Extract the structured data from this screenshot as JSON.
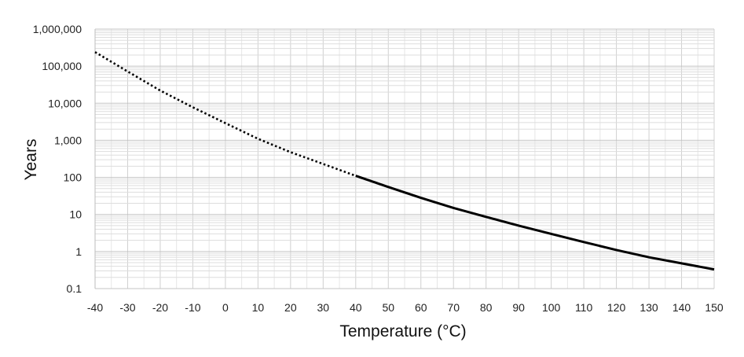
{
  "chart_data": {
    "type": "line",
    "title": "",
    "xlabel": "Temperature (°C)",
    "ylabel": "Years",
    "y_scale": "log",
    "xlim": [
      -40,
      150
    ],
    "ylim": [
      0.1,
      1000000
    ],
    "grid": true,
    "x_ticks": [
      -40,
      -30,
      -20,
      -10,
      0,
      10,
      20,
      30,
      40,
      50,
      60,
      70,
      80,
      90,
      100,
      110,
      120,
      130,
      140,
      150
    ],
    "x_tick_labels": [
      "-40",
      "-30",
      "-20",
      "-10",
      "0",
      "10",
      "20",
      "30",
      "40",
      "50",
      "60",
      "70",
      "80",
      "90",
      "100",
      "110",
      "120",
      "130",
      "140",
      "150"
    ],
    "y_ticks": [
      0.1,
      1,
      10,
      100,
      1000,
      10000,
      100000,
      1000000
    ],
    "y_tick_labels": [
      "0.1",
      "1",
      "10",
      "100",
      "1,000",
      "10,000",
      "100,000",
      "1,000,000"
    ],
    "series": [
      {
        "style": "dotted",
        "x": [
          -40,
          -30,
          -20,
          -10,
          0,
          10,
          20,
          30,
          40
        ],
        "y": [
          240000,
          72000,
          22000,
          7800,
          2900,
          1100,
          480,
          230,
          110
        ]
      },
      {
        "style": "solid",
        "x": [
          40,
          50,
          60,
          70,
          80,
          90,
          100,
          110,
          120,
          130,
          140,
          150
        ],
        "y": [
          110,
          55,
          28,
          15,
          8.6,
          5,
          3,
          1.8,
          1.1,
          0.7,
          0.48,
          0.33
        ]
      }
    ],
    "line_color": "#000000",
    "grid_color": "#d0d0d0"
  }
}
